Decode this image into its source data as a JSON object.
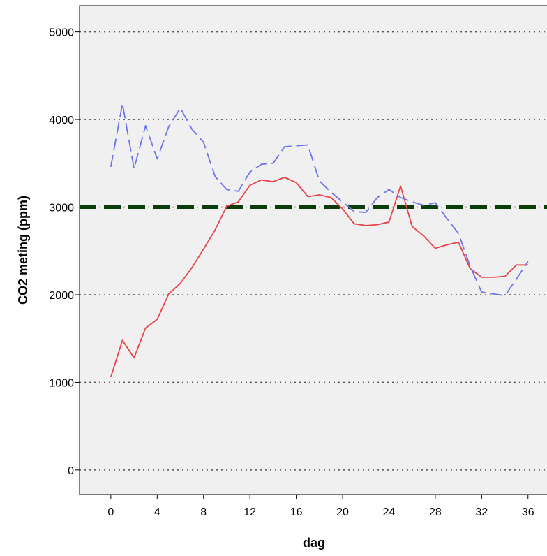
{
  "chart_data": {
    "type": "line",
    "xlabel": "dag",
    "ylabel": "CO2 meting (ppm)",
    "xlim": [
      -2.7,
      38
    ],
    "ylim": [
      -280,
      5300
    ],
    "x_ticks": [
      0,
      4,
      8,
      12,
      16,
      20,
      24,
      28,
      32,
      36
    ],
    "y_ticks": [
      0,
      1000,
      2000,
      3000,
      4000,
      5000
    ],
    "grid": "horizontal dotted",
    "reference_line": {
      "y": 3000,
      "color": "#0b3d0b",
      "style": "dashed"
    },
    "series": [
      {
        "color": "#e8434a",
        "style": "solid",
        "x": [
          0,
          1,
          2,
          3,
          4,
          5,
          6,
          7,
          8,
          9,
          10,
          11,
          12,
          13,
          14,
          15,
          16,
          17,
          18,
          19,
          20,
          21,
          22,
          23,
          24,
          25,
          26,
          27,
          28,
          29,
          30,
          31,
          32,
          33,
          34,
          35,
          36
        ],
        "y": [
          1060,
          1480,
          1280,
          1620,
          1720,
          2010,
          2130,
          2310,
          2520,
          2740,
          3010,
          3060,
          3250,
          3310,
          3290,
          3340,
          3280,
          3120,
          3140,
          3110,
          2980,
          2810,
          2790,
          2800,
          2830,
          3240,
          2780,
          2670,
          2530,
          2570,
          2600,
          2300,
          2200,
          2200,
          2210,
          2340,
          2340
        ]
      },
      {
        "color": "#6f73f0",
        "style": "dashed",
        "x": [
          0,
          1,
          2,
          3,
          4,
          5,
          6,
          7,
          8,
          9,
          10,
          11,
          12,
          13,
          14,
          15,
          16,
          17,
          18,
          19,
          20,
          21,
          22,
          23,
          24,
          25,
          26,
          27,
          28,
          29,
          30,
          31,
          32,
          33,
          34,
          35,
          36
        ],
        "y": [
          3460,
          4180,
          3440,
          3930,
          3550,
          3920,
          4130,
          3890,
          3740,
          3350,
          3200,
          3180,
          3400,
          3490,
          3500,
          3690,
          3700,
          3710,
          3300,
          3170,
          3060,
          2950,
          2940,
          3110,
          3200,
          3110,
          3060,
          3020,
          3050,
          2870,
          2700,
          2330,
          2030,
          2010,
          1990,
          2180,
          2380
        ]
      }
    ]
  }
}
